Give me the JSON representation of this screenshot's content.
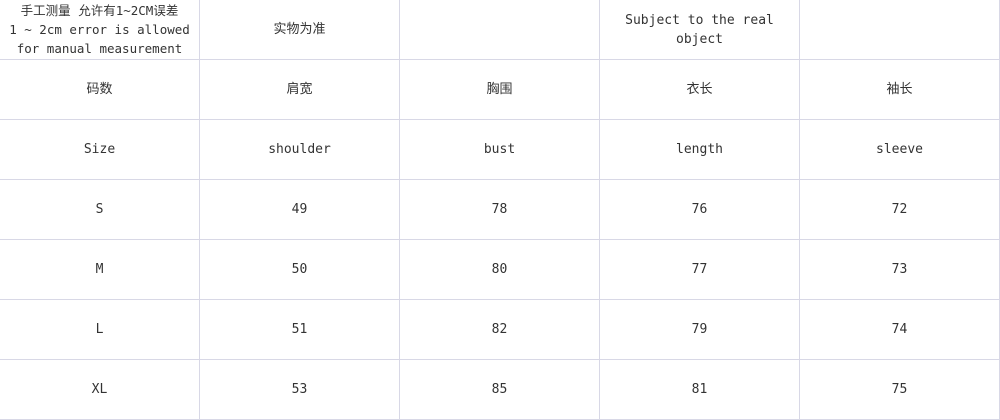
{
  "header": {
    "note_line1": "手工测量 允许有1~2CM误差",
    "note_line2": "1 ~ 2cm error is allowed",
    "note_line3": "for manual measurement",
    "cell2": "实物为准",
    "cell3": "",
    "cell4": "Subject to the real object",
    "cell5": ""
  },
  "columns_cn": [
    "码数",
    "肩宽",
    "胸围",
    "衣长",
    "袖长"
  ],
  "columns_en": [
    "Size",
    "shoulder",
    "bust",
    "length",
    "sleeve"
  ],
  "rows": [
    [
      "S",
      "49",
      "78",
      "76",
      "72"
    ],
    [
      "M",
      "50",
      "80",
      "77",
      "73"
    ],
    [
      "L",
      "51",
      "82",
      "79",
      "74"
    ],
    [
      "XL",
      "53",
      "85",
      "81",
      "75"
    ]
  ]
}
